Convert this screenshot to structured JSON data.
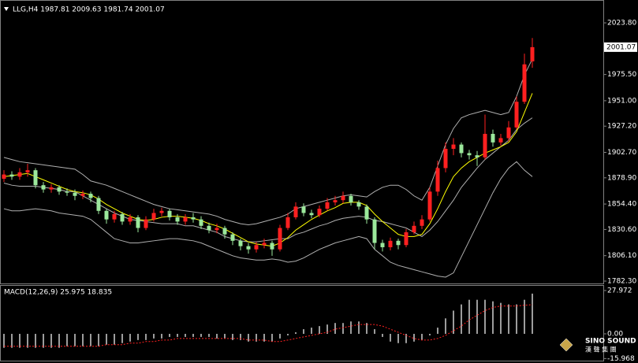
{
  "chart_data": [
    {
      "type": "candlestick",
      "title": "LLG,H4  1987.81 2009.63 1981.74 2001.07",
      "open": [
        1878,
        1882,
        1880,
        1884,
        1886,
        1872,
        1868,
        1870,
        1866,
        1865,
        1862,
        1864,
        1860,
        1848,
        1840,
        1845,
        1838,
        1842,
        1832,
        1840,
        1846,
        1848,
        1842,
        1838,
        1842,
        1840,
        1834,
        1830,
        1832,
        1826,
        1820,
        1815,
        1812,
        1816,
        1818,
        1812,
        1832,
        1842,
        1852,
        1846,
        1844,
        1850,
        1856,
        1858,
        1862,
        1856,
        1852,
        1840,
        1818,
        1814,
        1820,
        1816,
        1828,
        1834,
        1840,
        1866,
        1888,
        1906,
        1910,
        1902,
        1900,
        1898,
        1920,
        1912,
        1916,
        1926,
        1950,
        1987.81
      ],
      "high": [
        1886,
        1885,
        1888,
        1892,
        1888,
        1875,
        1873,
        1872,
        1869,
        1868,
        1867,
        1866,
        1862,
        1850,
        1848,
        1847,
        1845,
        1844,
        1843,
        1850,
        1851,
        1850,
        1845,
        1845,
        1846,
        1843,
        1837,
        1836,
        1834,
        1828,
        1822,
        1818,
        1819,
        1822,
        1820,
        1835,
        1846,
        1856,
        1855,
        1849,
        1853,
        1860,
        1862,
        1866,
        1864,
        1858,
        1854,
        1842,
        1821,
        1823,
        1822,
        1831,
        1838,
        1844,
        1870,
        1895,
        1912,
        1916,
        1912,
        1905,
        1904,
        1938,
        1924,
        1920,
        1932,
        1955,
        1995,
        2009.63
      ],
      "low": [
        1875,
        1877,
        1877,
        1880,
        1869,
        1865,
        1865,
        1863,
        1862,
        1858,
        1859,
        1856,
        1845,
        1836,
        1837,
        1835,
        1835,
        1828,
        1830,
        1838,
        1843,
        1839,
        1835,
        1835,
        1837,
        1831,
        1827,
        1827,
        1822,
        1816,
        1811,
        1808,
        1809,
        1813,
        1806,
        1810,
        1830,
        1840,
        1843,
        1841,
        1842,
        1848,
        1853,
        1855,
        1853,
        1849,
        1836,
        1812,
        1810,
        1811,
        1812,
        1814,
        1826,
        1831,
        1838,
        1862,
        1884,
        1900,
        1898,
        1896,
        1890,
        1896,
        1908,
        1909,
        1913,
        1924,
        1948,
        1981.74
      ],
      "close": [
        1882,
        1880,
        1884,
        1886,
        1872,
        1868,
        1870,
        1866,
        1865,
        1862,
        1864,
        1860,
        1848,
        1840,
        1845,
        1838,
        1842,
        1832,
        1840,
        1846,
        1848,
        1842,
        1838,
        1842,
        1840,
        1834,
        1830,
        1832,
        1826,
        1820,
        1815,
        1812,
        1816,
        1818,
        1812,
        1832,
        1842,
        1852,
        1846,
        1844,
        1850,
        1856,
        1858,
        1862,
        1856,
        1852,
        1840,
        1818,
        1814,
        1820,
        1816,
        1828,
        1834,
        1840,
        1866,
        1888,
        1906,
        1910,
        1902,
        1900,
        1898,
        1920,
        1912,
        1916,
        1926,
        1950,
        1985,
        2001.07
      ],
      "up_color": "#ff2020",
      "down_color": "#9be89b",
      "series": [
        {
          "color": "#b0b0b0",
          "values": [
            1898,
            1896,
            1894,
            1893,
            1892,
            1891,
            1890,
            1889,
            1888,
            1887,
            1882,
            1876,
            1874,
            1872,
            1869,
            1866,
            1863,
            1860,
            1857,
            1854,
            1852,
            1850,
            1849,
            1848,
            1847,
            1846,
            1845,
            1843,
            1840,
            1838,
            1836,
            1835,
            1836,
            1838,
            1840,
            1842,
            1845,
            1850,
            1852,
            1854,
            1856,
            1858,
            1860,
            1862,
            1863,
            1862,
            1861,
            1866,
            1870,
            1872,
            1872,
            1868,
            1862,
            1858,
            1870,
            1890,
            1910,
            1925,
            1935,
            1938,
            1940,
            1942,
            1940,
            1938,
            1940,
            1955,
            1975,
            1990
          ]
        },
        {
          "color": "#b0b0b0",
          "values": [
            1874,
            1872,
            1871,
            1871,
            1871,
            1870,
            1869,
            1868,
            1866,
            1866,
            1862,
            1858,
            1854,
            1850,
            1846,
            1843,
            1840,
            1839,
            1838,
            1837,
            1836,
            1836,
            1836,
            1834,
            1834,
            1832,
            1830,
            1828,
            1824,
            1822,
            1820,
            1819,
            1819,
            1820,
            1821,
            1822,
            1822,
            1826,
            1828,
            1831,
            1834,
            1836,
            1839,
            1841,
            1842,
            1843,
            1842,
            1839,
            1838,
            1836,
            1834,
            1832,
            1828,
            1824,
            1830,
            1838,
            1848,
            1858,
            1870,
            1879,
            1888,
            1896,
            1902,
            1908,
            1914,
            1924,
            1930,
            1935
          ]
        },
        {
          "color": "#b0b0b0",
          "values": [
            1850,
            1848,
            1848,
            1849,
            1850,
            1849,
            1848,
            1846,
            1845,
            1844,
            1843,
            1840,
            1834,
            1828,
            1822,
            1820,
            1818,
            1818,
            1819,
            1820,
            1821,
            1822,
            1822,
            1821,
            1820,
            1818,
            1815,
            1812,
            1809,
            1806,
            1804,
            1803,
            1802,
            1802,
            1803,
            1802,
            1800,
            1801,
            1804,
            1808,
            1812,
            1815,
            1818,
            1820,
            1822,
            1824,
            1822,
            1812,
            1806,
            1800,
            1797,
            1795,
            1793,
            1791,
            1789,
            1787,
            1786,
            1790,
            1805,
            1820,
            1835,
            1850,
            1865,
            1878,
            1888,
            1894,
            1886,
            1880
          ]
        },
        {
          "color": "#ffff00",
          "values": [
            1880,
            1881,
            1882,
            1883,
            1880,
            1877,
            1874,
            1871,
            1868,
            1866,
            1865,
            1863,
            1859,
            1854,
            1850,
            1846,
            1843,
            1840,
            1839,
            1840,
            1842,
            1843,
            1843,
            1842,
            1841,
            1839,
            1836,
            1834,
            1831,
            1827,
            1823,
            1819,
            1817,
            1816,
            1815,
            1818,
            1823,
            1830,
            1835,
            1840,
            1844,
            1848,
            1851,
            1855,
            1856,
            1856,
            1853,
            1845,
            1838,
            1832,
            1826,
            1824,
            1824,
            1826,
            1836,
            1850,
            1866,
            1880,
            1888,
            1894,
            1898,
            1902,
            1905,
            1908,
            1912,
            1922,
            1940,
            1958
          ]
        }
      ],
      "ylim": [
        1780.1,
        2043.7
      ],
      "yticks": [
        {
          "value": 2023.8,
          "label": "2023.80"
        },
        {
          "value": 1975.5,
          "label": "1975.50"
        },
        {
          "value": 1951,
          "label": "1951.00"
        },
        {
          "value": 1927.2,
          "label": "1927.20"
        },
        {
          "value": 1902.7,
          "label": "1902.70"
        },
        {
          "value": 1878.9,
          "label": "1878.90"
        },
        {
          "value": 1854.4,
          "label": "1854.40"
        },
        {
          "value": 1830.6,
          "label": "1830.60"
        },
        {
          "value": 1806.1,
          "label": "1806.10"
        },
        {
          "value": 1782.3,
          "label": "1782.30"
        }
      ]
    },
    {
      "type": "macd",
      "title": "MACD(12,26,9) 25.975 18.835",
      "values": [
        -9,
        -9,
        -9,
        -9,
        -9,
        -9,
        -9,
        -9,
        -8,
        -8,
        -8,
        -8,
        -8,
        -7,
        -7,
        -6,
        -5,
        -4,
        -4,
        -3,
        -3,
        -2,
        -2,
        -2,
        -2,
        -2,
        -2,
        -3,
        -3,
        -4,
        -4,
        -5,
        -5,
        -5,
        -5,
        -3,
        -1,
        1,
        3,
        4,
        5,
        6,
        7,
        7,
        8,
        8,
        7,
        3,
        -2,
        -5,
        -6,
        -6,
        -5,
        -4,
        -1,
        4,
        10,
        15,
        19,
        22,
        22,
        22,
        21,
        20,
        19,
        19,
        22,
        25.975
      ],
      "color": "#d0d0d0",
      "signal": {
        "color": "#ff2020",
        "values": [
          -8,
          -8,
          -8,
          -8,
          -8,
          -8,
          -8,
          -8,
          -8,
          -8,
          -8,
          -8,
          -8,
          -7,
          -7,
          -7,
          -6,
          -6,
          -5,
          -5,
          -4,
          -4,
          -3,
          -3,
          -3,
          -3,
          -3,
          -3,
          -3,
          -3,
          -3,
          -4,
          -4,
          -4,
          -5,
          -5,
          -4,
          -3,
          -2,
          -1,
          0,
          1,
          3,
          4,
          5,
          6,
          6,
          6,
          5,
          3,
          1,
          -1,
          -3,
          -4,
          -4,
          -3,
          -1,
          2,
          5,
          9,
          12,
          15,
          17,
          18,
          18,
          18,
          18.5,
          18.835
        ]
      },
      "ylim": [
        -17.3,
        31
      ],
      "yticks": [
        27.972,
        {
          "value": 0,
          "label": "0.00"
        },
        -15.968
      ]
    }
  ],
  "logo": {
    "name": "SINO SOUND",
    "subtitle": "漢 聲 集 團"
  }
}
